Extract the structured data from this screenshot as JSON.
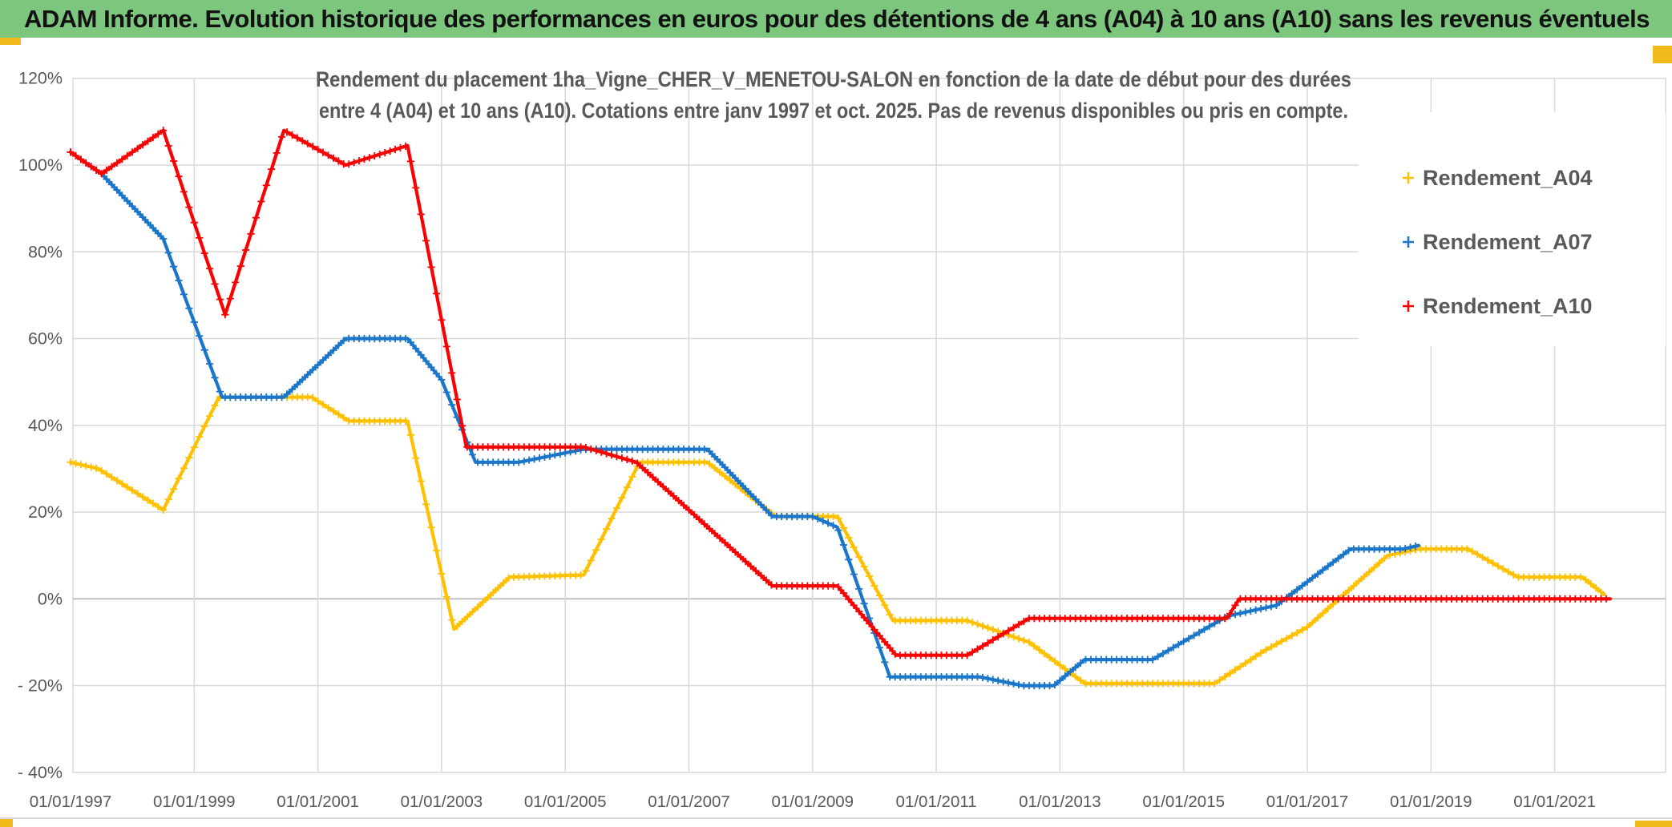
{
  "header": {
    "title": "ADAM Informe. Evolution historique des performances en euros pour des détentions de 4 ans (A04) à 10 ans (A10) sans les revenus éventuels",
    "bg_color": "#7CC67E",
    "accent_color": "#F2BA1D",
    "text_color": "#121212"
  },
  "chart_data": {
    "type": "line",
    "title_line1": "Rendement du placement 1ha_Vigne_CHER_V_MENETOU-SALON en fonction de la date de début pour des durées",
    "title_line2": "entre 4 (A04) et 10 ans (A10). Cotations entre janv 1997 et oct. 2025. Pas de revenus disponibles ou pris en compte.",
    "title_color": "#595959",
    "grid": true,
    "grid_color": "#d9d9d9",
    "zero_line_color": "#c0c0c0",
    "axis_text_color": "#595959",
    "legend_position": "right",
    "x_axis": {
      "tick_years": [
        1997,
        1999,
        2001,
        2003,
        2005,
        2007,
        2009,
        2011,
        2013,
        2015,
        2017,
        2019,
        2021
      ],
      "tick_labels": [
        "01/01/1997",
        "01/01/1999",
        "01/01/2001",
        "01/01/2003",
        "01/01/2005",
        "01/01/2007",
        "01/01/2009",
        "01/01/2011",
        "01/01/2013",
        "01/01/2015",
        "01/01/2017",
        "01/01/2019",
        "01/01/2021"
      ],
      "range_start": 1997.0,
      "range_end": 2022.8
    },
    "y_axis": {
      "tick_values": [
        120,
        100,
        80,
        60,
        40,
        20,
        0,
        -20,
        -40
      ],
      "tick_labels": [
        "120%",
        "100%",
        "80%",
        "60%",
        "40%",
        "20%",
        "0%",
        "- 20%",
        "- 40%"
      ],
      "min": -40,
      "max": 120,
      "unit": "%"
    },
    "series": [
      {
        "name": "Rendement_A04",
        "color": "#FFC000",
        "points": [
          [
            1997.0,
            31.5
          ],
          [
            1997.45,
            30.0
          ],
          [
            1998.5,
            20.5
          ],
          [
            1999.4,
            46.5
          ],
          [
            2000.9,
            46.5
          ],
          [
            2001.5,
            41.0
          ],
          [
            2002.45,
            41.0
          ],
          [
            2003.2,
            -7.0
          ],
          [
            2004.1,
            5.0
          ],
          [
            2005.3,
            5.5
          ],
          [
            2006.2,
            31.5
          ],
          [
            2007.3,
            31.5
          ],
          [
            2008.4,
            19.0
          ],
          [
            2009.4,
            19.0
          ],
          [
            2010.3,
            -5.0
          ],
          [
            2011.5,
            -5.0
          ],
          [
            2012.5,
            -10.0
          ],
          [
            2013.4,
            -19.5
          ],
          [
            2015.5,
            -19.5
          ],
          [
            2016.3,
            -12.0
          ],
          [
            2017.0,
            -6.5
          ],
          [
            2018.3,
            10.0
          ],
          [
            2018.8,
            11.5
          ],
          [
            2019.6,
            11.5
          ],
          [
            2020.4,
            5.0
          ],
          [
            2021.45,
            5.0
          ],
          [
            2021.8,
            1.0
          ]
        ]
      },
      {
        "name": "Rendement_A07",
        "color": "#1B76C9",
        "points": [
          [
            1997.0,
            103.0
          ],
          [
            1997.5,
            98.0
          ],
          [
            1998.5,
            83.0
          ],
          [
            1999.45,
            46.5
          ],
          [
            2000.45,
            46.5
          ],
          [
            2001.45,
            60.0
          ],
          [
            2002.45,
            60.0
          ],
          [
            2003.0,
            50.5
          ],
          [
            2003.55,
            31.5
          ],
          [
            2004.25,
            31.5
          ],
          [
            2005.3,
            34.5
          ],
          [
            2007.3,
            34.5
          ],
          [
            2008.35,
            19.0
          ],
          [
            2009.0,
            19.0
          ],
          [
            2009.4,
            16.5
          ],
          [
            2010.25,
            -18.0
          ],
          [
            2011.7,
            -18.0
          ],
          [
            2012.4,
            -20.0
          ],
          [
            2012.9,
            -20.0
          ],
          [
            2013.4,
            -14.0
          ],
          [
            2014.5,
            -14.0
          ],
          [
            2015.7,
            -4.0
          ],
          [
            2016.5,
            -1.5
          ],
          [
            2017.7,
            11.5
          ],
          [
            2018.55,
            11.5
          ],
          [
            2018.8,
            12.3
          ]
        ]
      },
      {
        "name": "Rendement_A10",
        "color": "#FB0000",
        "points": [
          [
            1997.0,
            103.0
          ],
          [
            1997.5,
            98.0
          ],
          [
            1998.5,
            108.0
          ],
          [
            1999.5,
            65.5
          ],
          [
            2000.45,
            108.0
          ],
          [
            2001.45,
            100.0
          ],
          [
            2002.45,
            104.5
          ],
          [
            2003.4,
            35.0
          ],
          [
            2005.3,
            35.0
          ],
          [
            2006.15,
            31.5
          ],
          [
            2008.35,
            3.0
          ],
          [
            2009.4,
            3.0
          ],
          [
            2010.35,
            -13.0
          ],
          [
            2011.5,
            -13.0
          ],
          [
            2012.5,
            -4.5
          ],
          [
            2015.7,
            -4.5
          ],
          [
            2015.9,
            0.0
          ],
          [
            2021.9,
            0.0
          ]
        ]
      }
    ]
  }
}
